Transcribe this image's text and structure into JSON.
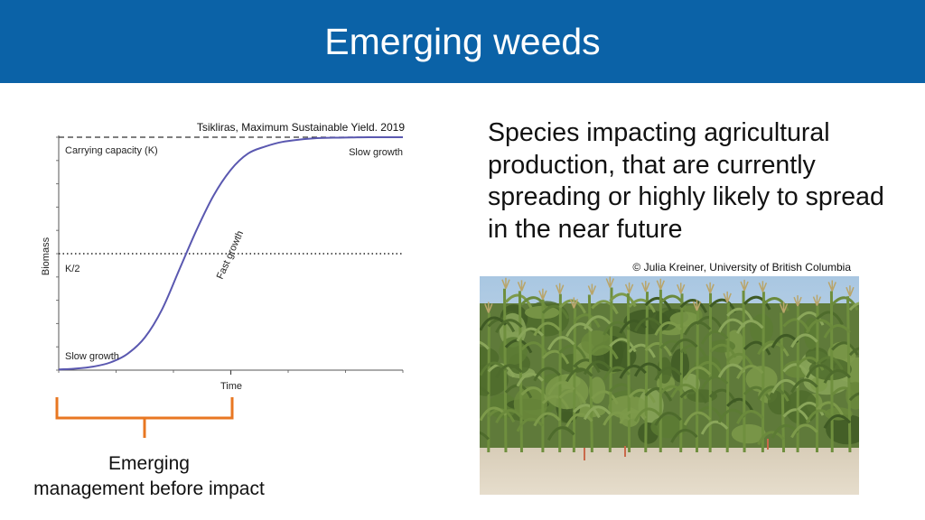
{
  "title": "Emerging weeds",
  "statement": "Species impacting agricultural production, that are currently spreading or highly likely to spread in the near future",
  "photo_credit": "© Julia Kreiner, University of British Columbia",
  "note": {
    "line1": "Emerging",
    "line2": "management before impact"
  },
  "colors": {
    "header": "#0b62a7",
    "curve": "#5a58b0",
    "bracket": "#e87722"
  },
  "chart_data": {
    "type": "line",
    "source": "Tsikliras, Maximum Sustainable Yield. 2019",
    "xlabel": "Time",
    "ylabel": "Biomass",
    "ylim": [
      0,
      1
    ],
    "series": [
      {
        "x": [
          0,
          0.05,
          0.1,
          0.15,
          0.2,
          0.25,
          0.3,
          0.35,
          0.4,
          0.45,
          0.5,
          0.55,
          0.6,
          0.65,
          0.7,
          0.75,
          0.8,
          0.85,
          0.9,
          0.95,
          1
        ],
        "y": [
          0.003,
          0.007,
          0.015,
          0.033,
          0.07,
          0.14,
          0.26,
          0.43,
          0.6,
          0.75,
          0.86,
          0.93,
          0.96,
          0.98,
          0.99,
          0.996,
          0.998,
          0.999,
          1,
          1,
          1
        ]
      }
    ],
    "reference_lines": [
      {
        "label": "Carrying capacity (K)",
        "y": 1,
        "style": "dashed"
      },
      {
        "label": "K/2",
        "y": 0.5,
        "style": "dotted"
      }
    ],
    "annotations": {
      "slow_start": "Slow growth",
      "fast": "Fast growth",
      "slow_end": "Slow growth"
    },
    "time_marker_x": 0.5,
    "grid": false
  }
}
